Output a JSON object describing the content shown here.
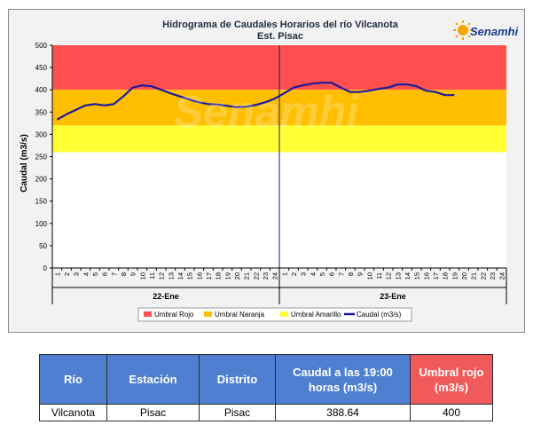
{
  "colors": {
    "red_band": "#ff4f4f",
    "orange_band": "#ffbf00",
    "yellow_band": "#ffff33",
    "series_line": "#1a1aa0",
    "table_header_blue": "#4e7fd0",
    "table_header_red": "#f05a5a"
  },
  "logo": {
    "text": "Senamhi",
    "icon": "sun-logo-icon",
    "watermark": "Senamhi"
  },
  "chart_data": {
    "type": "line",
    "title": "Hidrograma de Caudales Horarios del río Vilcanota",
    "subtitle": "Est. Pisac",
    "ylabel": "Caudal  (m3/s)",
    "ylim": [
      0,
      500
    ],
    "yticks": [
      "0",
      "50",
      "100",
      "150",
      "200",
      "250",
      "300",
      "350",
      "400",
      "450",
      "500"
    ],
    "xticks": [
      "1",
      "2",
      "3",
      "4",
      "5",
      "6",
      "7",
      "8",
      "9",
      "10",
      "11",
      "12",
      "13",
      "14",
      "15",
      "16",
      "17",
      "18",
      "19",
      "20",
      "21",
      "22",
      "23",
      "24",
      "1",
      "2",
      "3",
      "4",
      "5",
      "6",
      "7",
      "8",
      "9",
      "10",
      "11",
      "12",
      "13",
      "14",
      "15",
      "16",
      "17",
      "18",
      "19",
      "20",
      "21",
      "22",
      "23",
      "24"
    ],
    "day_labels": [
      "22-Ene",
      "23-Ene"
    ],
    "thresholds": [
      {
        "name": "Umbral Rojo",
        "from": 400,
        "to": 500
      },
      {
        "name": "Umbral Naranja",
        "from": 320,
        "to": 400
      },
      {
        "name": "Umbral Amarillo",
        "from": 260,
        "to": 320
      }
    ],
    "legend": [
      "Umbral Rojo",
      "Umbral Naranja",
      "Umbral Amarillo",
      "Caudal (m3/s)"
    ],
    "legend_position": "bottom",
    "grid": false,
    "series": [
      {
        "name": "Caudal (m3/s)",
        "values": [
          333,
          345,
          355,
          365,
          368,
          365,
          368,
          385,
          405,
          410,
          408,
          400,
          392,
          385,
          378,
          372,
          368,
          367,
          364,
          361,
          362,
          366,
          372,
          380,
          392,
          405,
          410,
          414,
          416,
          416,
          405,
          395,
          395,
          398,
          402,
          405,
          412,
          412,
          408,
          398,
          395,
          388,
          388
        ]
      }
    ]
  },
  "table": {
    "headers": [
      "Río",
      "Estación",
      "Distrito",
      "Caudal a las 19:00 horas (m3/s)",
      "Umbral rojo (m3/s)"
    ],
    "row": [
      "Vilcanota",
      "Pisac",
      "Pisac",
      "388.64",
      "400"
    ]
  }
}
